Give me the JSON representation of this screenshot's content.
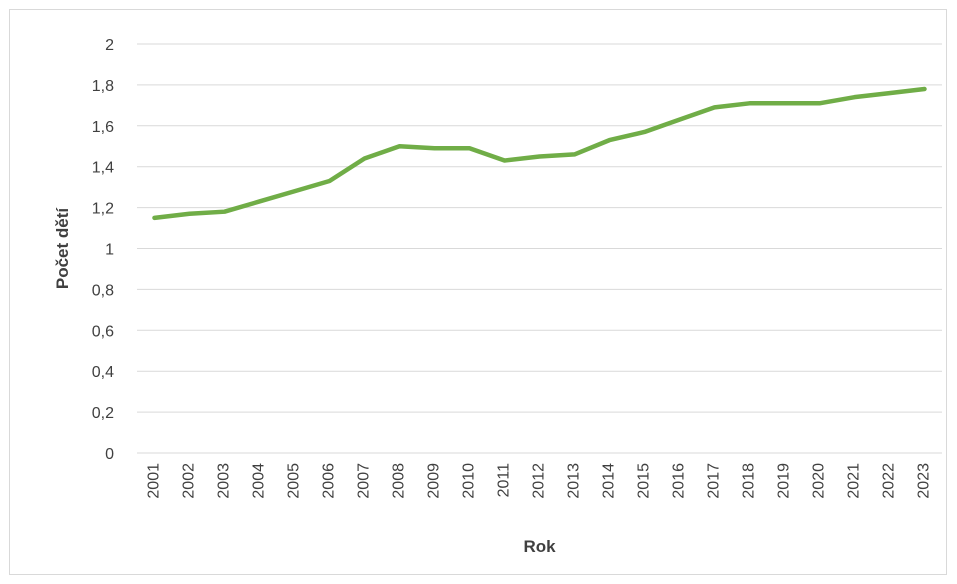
{
  "chart_data": {
    "type": "line",
    "title": "",
    "xlabel": "Rok",
    "ylabel": "Počet dětí",
    "x": [
      "2001",
      "2002",
      "2003",
      "2004",
      "2005",
      "2006",
      "2007",
      "2008",
      "2009",
      "2010",
      "2011",
      "2012",
      "2013",
      "2014",
      "2015",
      "2016",
      "2017",
      "2018",
      "2019",
      "2020",
      "2021",
      "2022",
      "2023"
    ],
    "series": [
      {
        "values": [
          1.15,
          1.17,
          1.18,
          1.23,
          1.28,
          1.33,
          1.44,
          1.5,
          1.49,
          1.49,
          1.43,
          1.45,
          1.46,
          1.53,
          1.57,
          1.63,
          1.69,
          1.71,
          1.71,
          1.71,
          1.74,
          1.76,
          1.78
        ],
        "color": "#70ad47"
      }
    ],
    "ylim": [
      0,
      2
    ],
    "yticks": [
      "0",
      "0,2",
      "0,4",
      "0,6",
      "0,8",
      "1",
      "1,2",
      "1,4",
      "1,6",
      "1,8",
      "2"
    ],
    "grid": true,
    "legend": "none",
    "gridline_color": "#d9d9d9"
  }
}
